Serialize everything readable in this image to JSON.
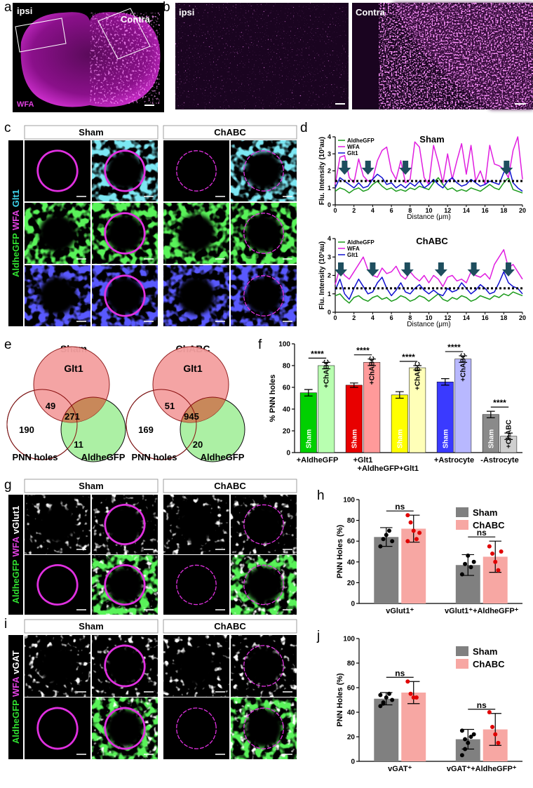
{
  "panel_labels": [
    "a",
    "b",
    "c",
    "d",
    "e",
    "f",
    "g",
    "h",
    "i",
    "j"
  ],
  "panel_a": {
    "labels": [
      "ipsi",
      "Contra",
      "WFA"
    ]
  },
  "panel_b": {
    "labels": [
      "ipsi",
      "Contra"
    ]
  },
  "panel_c": {
    "headers": [
      "Sham",
      "ChABC"
    ],
    "channels": [
      "AldheGFP",
      "WFA",
      "Glt1"
    ]
  },
  "panel_e": {
    "diagrams": [
      {
        "title": "Sham",
        "sets": [
          "Glt1",
          "PNN holes",
          "AldheGFP"
        ],
        "counts": [
          49,
          271,
          190,
          11
        ]
      },
      {
        "title": "ChABC",
        "sets": [
          "Glt1",
          "PNN holes",
          "AldheGFP"
        ],
        "counts": [
          51,
          945,
          169,
          20
        ]
      }
    ]
  },
  "panel_g": {
    "headers": [
      "Sham",
      "ChABC"
    ],
    "channels": [
      "AldheGFP",
      "WFA",
      "vGlut1"
    ]
  },
  "panel_i": {
    "headers": [
      "Sham",
      "ChABC"
    ],
    "channels": [
      "AldheGFP",
      "WFA",
      "vGAT"
    ]
  },
  "chart_data": [
    {
      "type": "line",
      "title": "Sham",
      "x_label": "Distance (μm)",
      "y_label": "Flu. Intensity (10³au)",
      "x": [
        0,
        0.5,
        1,
        1.5,
        2,
        2.5,
        3,
        3.5,
        4,
        4.5,
        5,
        5.5,
        6,
        6.5,
        7,
        7.5,
        8,
        8.5,
        9,
        9.5,
        10,
        10.5,
        11,
        11.5,
        12,
        12.5,
        13,
        13.5,
        14,
        14.5,
        15,
        15.5,
        16,
        16.5,
        17,
        17.5,
        18,
        18.5,
        19,
        19.5,
        20
      ],
      "series": [
        {
          "name": "AldheGFP",
          "color": "#1a9a1a",
          "values": [
            0.8,
            1.0,
            0.9,
            0.7,
            0.9,
            1.0,
            0.8,
            0.9,
            1.2,
            1.4,
            1.1,
            0.9,
            1.0,
            0.8,
            0.9,
            0.8,
            1.0,
            0.9,
            1.1,
            1.0,
            0.9,
            1.3,
            1.6,
            1.2,
            0.9,
            1.0,
            0.8,
            0.9,
            0.8,
            1.0,
            0.9,
            0.8,
            1.0,
            1.2,
            1.0,
            0.9,
            1.3,
            1.6,
            0.9,
            0.8,
            0.7
          ]
        },
        {
          "name": "WFA",
          "color": "#e01ee0",
          "values": [
            1.2,
            2.8,
            2.9,
            1.6,
            1.3,
            2.7,
            1.7,
            1.4,
            1.5,
            2.6,
            3.2,
            3.4,
            2.0,
            1.5,
            2.6,
            1.3,
            1.5,
            3.7,
            3.4,
            1.6,
            1.2,
            3.5,
            2.5,
            1.3,
            3.0,
            1.5,
            2.6,
            3.6,
            1.8,
            3.5,
            1.4,
            2.0,
            1.2,
            3.5,
            2.4,
            2.3,
            2.1,
            1.6,
            3.2,
            4.0,
            1.5
          ]
        },
        {
          "name": "Glt1",
          "color": "#1010d0",
          "values": [
            1.0,
            1.6,
            1.4,
            1.2,
            1.0,
            1.3,
            1.0,
            1.1,
            1.5,
            1.8,
            1.6,
            1.2,
            1.3,
            1.0,
            1.2,
            1.0,
            1.3,
            1.1,
            1.4,
            1.0,
            1.2,
            1.5,
            1.2,
            1.0,
            1.4,
            1.6,
            1.3,
            1.1,
            1.2,
            1.5,
            1.3,
            1.1,
            1.2,
            1.4,
            1.3,
            1.2,
            1.9,
            2.3,
            1.3,
            1.0,
            0.8
          ]
        }
      ],
      "reference_line": 1.4,
      "arrows": [
        1,
        3.5,
        7.5,
        18.3
      ],
      "xlim": [
        0,
        20
      ],
      "xticks": [
        0,
        2,
        4,
        6,
        8,
        10,
        12,
        14,
        16,
        18,
        20
      ],
      "ylim": [
        0,
        4
      ],
      "yticks": [
        0,
        1,
        2,
        3,
        4
      ]
    },
    {
      "type": "line",
      "title": "ChABC",
      "x_label": "Distance (μm)",
      "y_label": "Flu. Intensity (10³au)",
      "x": [
        0,
        0.5,
        1,
        1.5,
        2,
        2.5,
        3,
        3.5,
        4,
        4.5,
        5,
        5.5,
        6,
        6.5,
        7,
        7.5,
        8,
        8.5,
        9,
        9.5,
        10,
        10.5,
        11,
        11.5,
        12,
        12.5,
        13,
        13.5,
        14,
        14.5,
        15,
        15.5,
        16,
        16.5,
        17,
        17.5,
        18,
        18.5,
        19,
        19.5,
        20
      ],
      "series": [
        {
          "name": "AldheGFP",
          "color": "#1a9a1a",
          "values": [
            0.9,
            1.0,
            0.7,
            0.5,
            0.8,
            0.9,
            0.7,
            0.6,
            0.8,
            0.9,
            0.7,
            0.8,
            0.6,
            0.7,
            0.9,
            0.8,
            0.6,
            0.7,
            0.9,
            0.8,
            0.6,
            0.8,
            1.0,
            0.7,
            0.6,
            0.8,
            0.7,
            0.9,
            0.8,
            0.6,
            0.7,
            0.9,
            0.8,
            0.7,
            0.9,
            0.8,
            1.0,
            0.9,
            1.1,
            1.0,
            0.9
          ]
        },
        {
          "name": "WFA",
          "color": "#e01ee0",
          "values": [
            1.5,
            2.4,
            2.0,
            1.8,
            2.2,
            2.6,
            3.0,
            2.3,
            2.0,
            1.9,
            2.4,
            2.1,
            2.2,
            2.5,
            2.0,
            1.8,
            2.2,
            1.9,
            1.7,
            2.0,
            1.6,
            2.0,
            1.8,
            1.4,
            1.9,
            2.0,
            1.7,
            1.8,
            1.6,
            2.2,
            2.0,
            1.9,
            2.1,
            1.8,
            2.6,
            3.0,
            3.4,
            2.4,
            2.6,
            2.2,
            1.8
          ]
        },
        {
          "name": "Glt1",
          "color": "#1010d0",
          "values": [
            1.2,
            1.8,
            1.0,
            0.7,
            1.3,
            1.8,
            1.4,
            1.0,
            1.1,
            1.6,
            1.9,
            1.3,
            0.9,
            1.2,
            1.6,
            1.1,
            1.0,
            1.3,
            1.5,
            1.2,
            1.0,
            1.2,
            1.0,
            0.9,
            1.3,
            1.1,
            1.2,
            1.6,
            1.3,
            1.0,
            1.2,
            1.5,
            1.3,
            1.0,
            1.1,
            1.6,
            2.2,
            1.6,
            1.4,
            1.3,
            1.0
          ]
        }
      ],
      "reference_line": 1.3,
      "arrows": [
        0.6,
        4,
        7.7,
        11.3,
        14.8,
        18.5
      ],
      "xlim": [
        0,
        20
      ],
      "xticks": [
        0,
        2,
        4,
        6,
        8,
        10,
        12,
        14,
        16,
        18,
        20
      ],
      "ylim": [
        0,
        4
      ],
      "yticks": [
        0,
        1,
        2,
        3,
        4
      ]
    },
    {
      "type": "bar",
      "y_label": "% PNN holes",
      "categories": [
        "+AldheGFP",
        "+Glt1",
        "+AldheGFP+Glt1",
        "+Astrocyte",
        "-Astrocyte"
      ],
      "series": [
        {
          "name": "Sham",
          "colors": [
            "#00d000",
            "#e80000",
            "#ffff00",
            "#3a3aff",
            "#8a8a8a"
          ],
          "values": [
            55,
            62,
            53,
            65,
            35
          ],
          "errors": [
            3,
            2,
            3,
            3,
            3
          ]
        },
        {
          "name": "+ChABC",
          "colors": [
            "#b8ffb0",
            "#ff9a9a",
            "#ffffb8",
            "#b8b8ff",
            "#cfcfcf"
          ],
          "values": [
            80,
            83,
            78,
            86,
            15
          ],
          "errors": [
            3,
            3,
            2,
            3,
            3
          ]
        }
      ],
      "significance": [
        "****",
        "****",
        "****",
        "****",
        "****"
      ],
      "inside_labels": true,
      "ylim": [
        0,
        100
      ],
      "yticks": [
        0,
        20,
        40,
        60,
        80,
        100
      ]
    },
    {
      "type": "bar",
      "y_label": "PNN Holes (%)",
      "categories": [
        "vGlut1⁺",
        "vGlut1⁺+AldheGFP⁺"
      ],
      "series": [
        {
          "name": "Sham",
          "color": "#808080",
          "point_color": "#000000",
          "values": [
            64,
            37
          ],
          "errors": [
            9,
            10
          ],
          "points": [
            [
              55,
              62,
              66,
              70,
              60
            ],
            [
              28,
              38,
              46,
              35,
              40
            ]
          ]
        },
        {
          "name": "ChABC",
          "color": "#f7a7a3",
          "point_color": "#e00000",
          "values": [
            72,
            45
          ],
          "errors": [
            13,
            15
          ],
          "points": [
            [
              85,
              78,
              70,
              62,
              68,
              60
            ],
            [
              55,
              48,
              40,
              32,
              50
            ]
          ]
        }
      ],
      "significance": [
        "ns",
        "ns"
      ],
      "legend": "upper right",
      "ylim": [
        0,
        100
      ],
      "yticks": [
        0,
        20,
        40,
        60,
        80,
        100
      ]
    },
    {
      "type": "bar",
      "y_label": "PNN Holes (%)",
      "categories": [
        "vGAT⁺",
        "vGAT⁺+AldheGFP⁺"
      ],
      "series": [
        {
          "name": "Sham",
          "color": "#808080",
          "point_color": "#000000",
          "values": [
            51,
            18
          ],
          "errors": [
            5,
            8
          ],
          "points": [
            [
              45,
              48,
              52,
              55,
              50,
              54,
              47
            ],
            [
              5,
              10,
              15,
              20,
              22,
              25,
              18
            ]
          ]
        },
        {
          "name": "ChABC",
          "color": "#f7a7a3",
          "point_color": "#e00000",
          "values": [
            56,
            26
          ],
          "errors": [
            9,
            13
          ],
          "points": [
            [
              65,
              55,
              52,
              52
            ],
            [
              40,
              28,
              22,
              15
            ]
          ]
        }
      ],
      "significance": [
        "ns",
        "ns"
      ],
      "legend": "upper right",
      "ylim": [
        0,
        100
      ],
      "yticks": [
        0,
        20,
        40,
        60,
        80,
        100
      ]
    }
  ]
}
